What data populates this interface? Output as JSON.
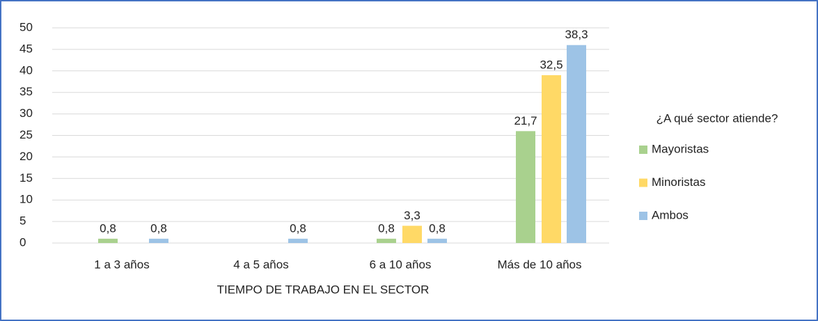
{
  "chart_data": {
    "type": "bar",
    "x_label": "TIEMPO DE TRABAJO EN EL SECTOR",
    "legend_title": "¿A qué sector atiende?",
    "legend": "right",
    "grid": true,
    "categories": [
      "1 a 3 años",
      "4 a 5 años",
      "6 a 10 años",
      "Más de 10 años"
    ],
    "series": [
      {
        "name": "Mayoristas",
        "color": "#a9d18e",
        "values": [
          1,
          0,
          1,
          26
        ],
        "data_labels": [
          "0,8",
          null,
          "0,8",
          "21,7"
        ]
      },
      {
        "name": "Minoristas",
        "color": "#ffd966",
        "values": [
          0,
          0,
          4,
          39
        ],
        "data_labels": [
          null,
          null,
          "3,3",
          "32,5"
        ]
      },
      {
        "name": "Ambos",
        "color": "#9dc3e6",
        "values": [
          1,
          1,
          1,
          46
        ],
        "data_labels": [
          "0,8",
          "0,8",
          "0,8",
          "38,3"
        ]
      }
    ],
    "ylim": [
      0,
      50
    ],
    "yticks": [
      0,
      5,
      10,
      15,
      20,
      25,
      30,
      35,
      40,
      45,
      50
    ]
  }
}
